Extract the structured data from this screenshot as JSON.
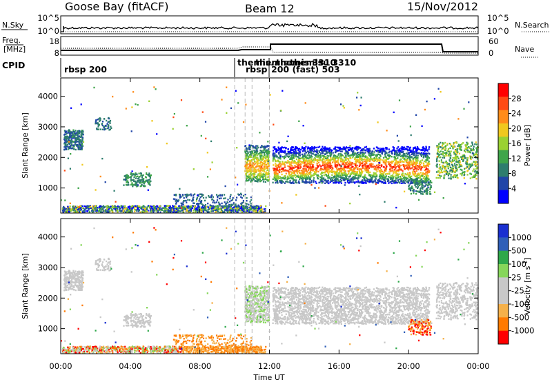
{
  "header": {
    "station": "Goose Bay (fitACF)",
    "beam": "Beam 12",
    "date": "15/Nov/2012"
  },
  "strip_labels": {
    "nsky": "N.Sky",
    "nsearch": "N.Search",
    "freq_line1": "Freq.",
    "freq_line2": "[MHz]",
    "nave": "Nave",
    "cpid": "CPID"
  },
  "noise_axis": {
    "left_ticks": [
      "10^5",
      "10^0"
    ],
    "right_ticks": [
      "10^5",
      "10^0"
    ]
  },
  "freq_axis": {
    "left_ticks": [
      "18",
      "8"
    ],
    "right_ticks": [
      "60",
      "0"
    ]
  },
  "cpid_labels": [
    "rbsp 200",
    "themis...",
    "themis...",
    "rbsp",
    "themis 3310",
    "themisu 3310",
    "200 (fast) 503"
  ],
  "colors": {
    "power_scale": [
      "#0000ff",
      "#2045a8",
      "#2e7d6e",
      "#3fa54a",
      "#9ad132",
      "#f0c81e",
      "#ff8c1a",
      "#ff4a14",
      "#ff0000"
    ],
    "velocity_scale": [
      "#ff0000",
      "#ff7a00",
      "#f5b14a",
      "#c8c8c8",
      "#c8c8c8",
      "#86d65a",
      "#2ea84a",
      "#2f5fb8",
      "#1a2fd0"
    ]
  },
  "chart_data": [
    {
      "type": "heatmap",
      "title": "Beam 12",
      "ylabel": "Slant Range [km]",
      "xlabel": "Time UT",
      "x_ticks": [
        "00:00",
        "04:00",
        "08:00",
        "12:00",
        "16:00",
        "20:00",
        "00:00"
      ],
      "y_ticks": [
        "1000",
        "2000",
        "3000",
        "4000"
      ],
      "ylim": [
        180,
        4600
      ],
      "xlim_hours": [
        0,
        24
      ],
      "colorbar_label": "Power [dB]",
      "colorbar_ticks": [
        "4",
        "8",
        "12",
        "16",
        "20",
        "24",
        "28"
      ],
      "colorbar_range": [
        0,
        32
      ]
    },
    {
      "type": "heatmap",
      "ylabel": "Slant Range [km]",
      "xlabel": "Time UT",
      "x_ticks": [
        "00:00",
        "04:00",
        "08:00",
        "12:00",
        "16:00",
        "20:00",
        "00:00"
      ],
      "y_ticks": [
        "1000",
        "2000",
        "3000",
        "4000"
      ],
      "ylim": [
        180,
        4600
      ],
      "xlim_hours": [
        0,
        24
      ],
      "colorbar_label": "Velocity [m s^-1]",
      "colorbar_ticks": [
        "-1000",
        "-500",
        "-100",
        "-25",
        "25",
        "100",
        "500",
        "1000"
      ]
    }
  ]
}
